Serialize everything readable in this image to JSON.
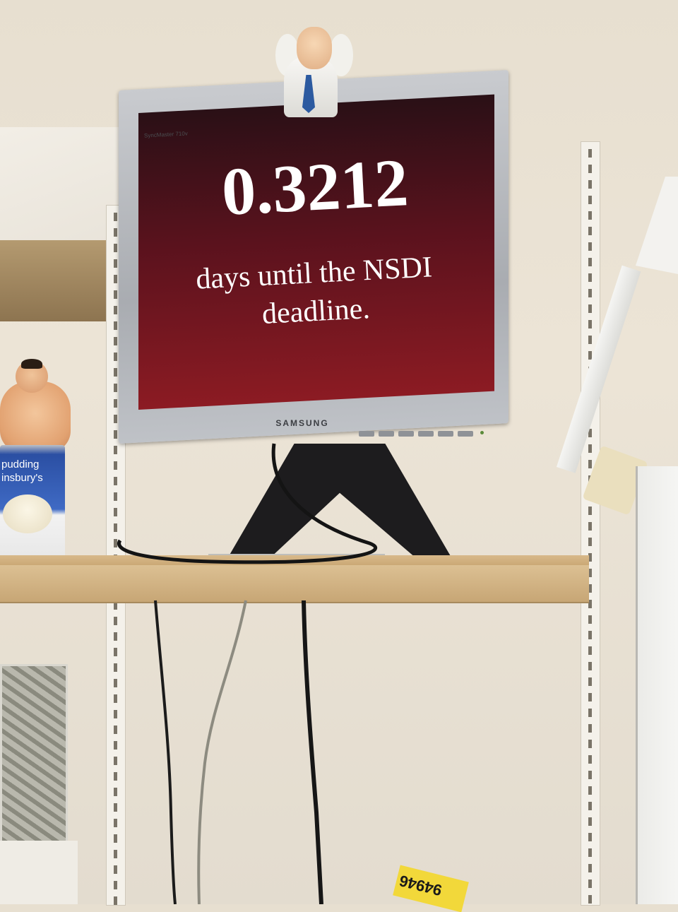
{
  "screen": {
    "countdown_value": "0.3212",
    "caption_line1": "days until the NSDI",
    "caption_line2": "deadline."
  },
  "monitor": {
    "brand": "SAMSUNG",
    "model": "SyncMaster 710v"
  },
  "can_label": {
    "line1": "pudding",
    "line2": "insbury's"
  },
  "ticket_text": "94946",
  "colors": {
    "screen_top": "#2a1016",
    "screen_bottom": "#8c1b23",
    "bezel": "#b8bbc0",
    "shelf": "#d2b383",
    "wall": "#e7dfd0"
  }
}
